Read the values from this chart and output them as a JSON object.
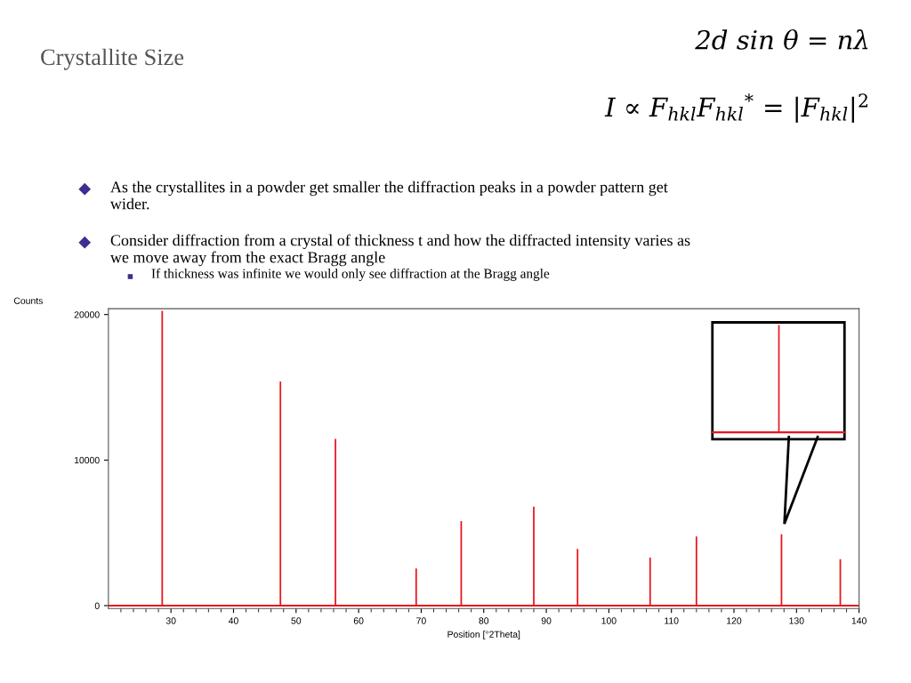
{
  "chart_data": {
    "type": "bar",
    "title": "Crystallite Size",
    "xlabel": "Position [°2Theta]",
    "ylabel": "Counts",
    "x": [
      28.6,
      47.5,
      56.3,
      69.2,
      76.4,
      88.0,
      95.0,
      106.6,
      114.0,
      127.6,
      137.0
    ],
    "values": [
      20250,
      15400,
      11450,
      2550,
      5800,
      6800,
      3900,
      3300,
      4750,
      4900,
      3200
    ],
    "color": "#e8151b",
    "xlim": [
      20,
      140
    ],
    "xticks": [
      30,
      40,
      50,
      60,
      70,
      80,
      90,
      100,
      110,
      120,
      130,
      140
    ],
    "ylim": [
      -200,
      20400
    ],
    "yticks": [
      0,
      10000,
      20000
    ],
    "ref_lines": [
      {
        "axis": "y",
        "value": 0,
        "color": "#e8151b"
      }
    ],
    "grid": false,
    "legend": false,
    "annotations": [
      "2d sin θ = nλ",
      "I ∝ F$_{hkl}$F$_{hkl}$$^{*}$ = |F$_{hkl}$|$^{2}$",
      "As the crystallites in a powder get smaller the diffraction peaks in a powder pattern get wider.",
      "Consider diffraction from a crystal of thickness t and how the diffracted intensity varies as we move away from the exact Bragg angle",
      "If thickness was infinite we would only see diffraction at the Bragg angle"
    ]
  }
}
